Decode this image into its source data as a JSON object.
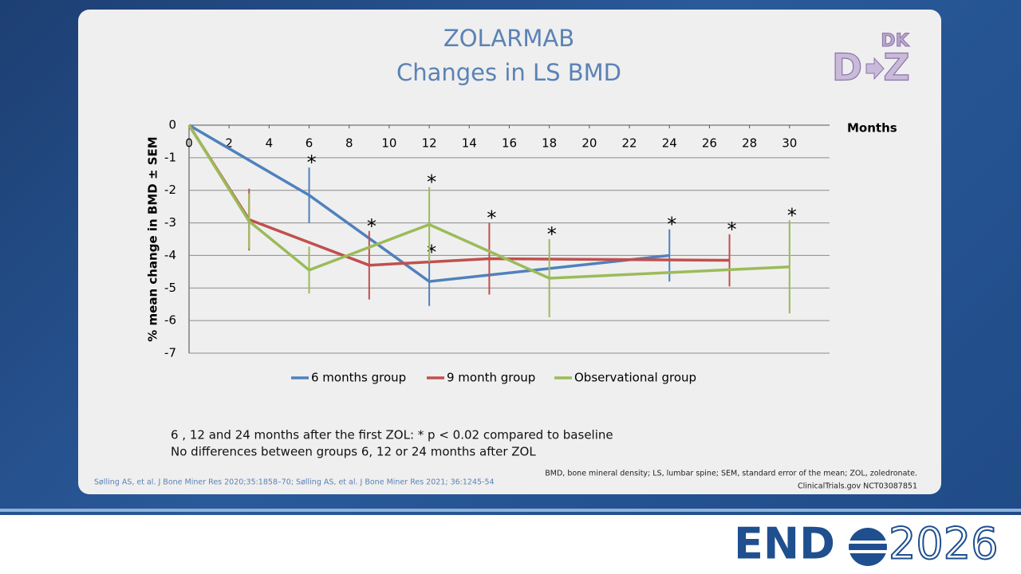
{
  "chart_data": {
    "type": "line",
    "title": "ZOLARMAB",
    "subtitle": "Changes in LS BMD",
    "x_label": "Months",
    "y_label": "% mean change in BMD ± SEM",
    "xlim": [
      0,
      32
    ],
    "xticks": [
      0,
      2,
      4,
      6,
      8,
      10,
      12,
      14,
      16,
      18,
      20,
      22,
      24,
      26,
      28,
      30
    ],
    "ylim": [
      -7,
      0
    ],
    "yticks": [
      0,
      -1,
      -2,
      -3,
      -4,
      -5,
      -6,
      -7
    ],
    "grid": true,
    "legend": "bottom",
    "series": [
      {
        "name": "6 months group",
        "color": "#4f81bd",
        "x": [
          0,
          6,
          12,
          24
        ],
        "values": [
          0,
          -2.15,
          -4.8,
          -4.0
        ],
        "errors": [
          0,
          0.85,
          0.75,
          0.8
        ],
        "point_labels": [
          null,
          "*",
          "*",
          "*"
        ]
      },
      {
        "name": "9 month group",
        "color": "#c0504d",
        "x": [
          0,
          3,
          9,
          15,
          27
        ],
        "values": [
          0,
          -2.9,
          -4.3,
          -4.1,
          -4.15
        ],
        "errors": [
          0,
          0.95,
          1.05,
          1.1,
          0.8
        ],
        "point_labels": [
          null,
          null,
          "*",
          "*",
          "*"
        ]
      },
      {
        "name": "Observational group",
        "color": "#9bbb59",
        "x": [
          0,
          3,
          6,
          12,
          18,
          30
        ],
        "values": [
          0,
          -2.95,
          -4.45,
          -3.05,
          -4.7,
          -4.35
        ],
        "errors": [
          0,
          0.85,
          0.72,
          1.15,
          1.2,
          1.43
        ],
        "point_labels": [
          null,
          null,
          null,
          "*",
          "*",
          "*"
        ]
      }
    ]
  },
  "slide": {
    "notes": [
      "6 , 12 and 24 months after the first ZOL: * p < 0.02 compared to baseline",
      "No differences between groups 6, 12 or 24 months after ZOL"
    ],
    "citation": "Sølling AS, et al. J Bone Miner Res 2020;35:1858–70; Sølling AS, et al. J Bone Miner Res 2021; 36:1245-54",
    "abbreviations": "BMD, bone mineral density; LS, lumbar spine; SEM, standard error of the mean; ZOL, zoledronate.",
    "trial": "ClinicalTrials.gov NCT03087851",
    "logo": {
      "small": "DK",
      "left": "D",
      "right": "Z"
    },
    "event": {
      "name": "END",
      "year": "2026"
    }
  }
}
